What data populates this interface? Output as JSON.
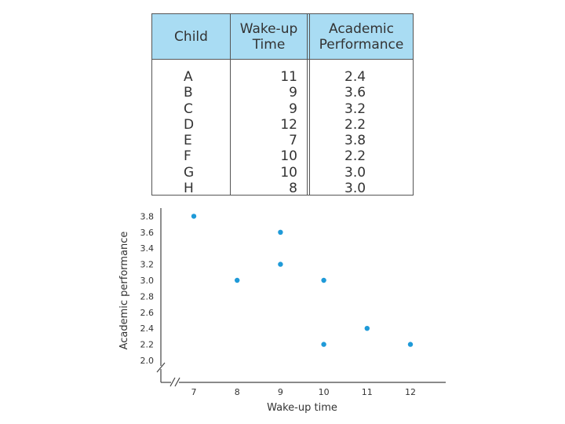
{
  "table": {
    "headers": [
      "Child",
      "Wake-up\nTime",
      "Academic\nPerformance"
    ],
    "children": [
      "A",
      "B",
      "C",
      "D",
      "E",
      "F",
      "G",
      "H"
    ],
    "wake_up_times": [
      "11",
      "9",
      "9",
      "12",
      "7",
      "10",
      "10",
      "8"
    ],
    "performance": [
      "2.4",
      "3.6",
      "3.2",
      "2.2",
      "3.8",
      "2.2",
      "3.0",
      "3.0"
    ]
  },
  "chart_data": {
    "type": "scatter",
    "title": "",
    "xlabel": "Wake-up time",
    "ylabel": "Academic performance",
    "xlim": [
      6,
      12.8
    ],
    "ylim": [
      2.0,
      3.8
    ],
    "x_ticks": [
      "7",
      "8",
      "9",
      "10",
      "11",
      "12"
    ],
    "y_ticks": [
      "2.0",
      "2.2",
      "2.4",
      "2.6",
      "2.8",
      "3.0",
      "3.2",
      "3.4",
      "3.6",
      "3.8"
    ],
    "points": [
      {
        "label": "A",
        "x": 11,
        "y": 2.4
      },
      {
        "label": "B",
        "x": 9,
        "y": 3.6
      },
      {
        "label": "C",
        "x": 9,
        "y": 3.2
      },
      {
        "label": "D",
        "x": 12,
        "y": 2.2
      },
      {
        "label": "E",
        "x": 7,
        "y": 3.8
      },
      {
        "label": "F",
        "x": 10,
        "y": 2.2
      },
      {
        "label": "G",
        "x": 10,
        "y": 3.0
      },
      {
        "label": "H",
        "x": 8,
        "y": 3.0
      }
    ],
    "axis_breaks": true,
    "grid": false,
    "point_color": "#1f9ad8"
  }
}
